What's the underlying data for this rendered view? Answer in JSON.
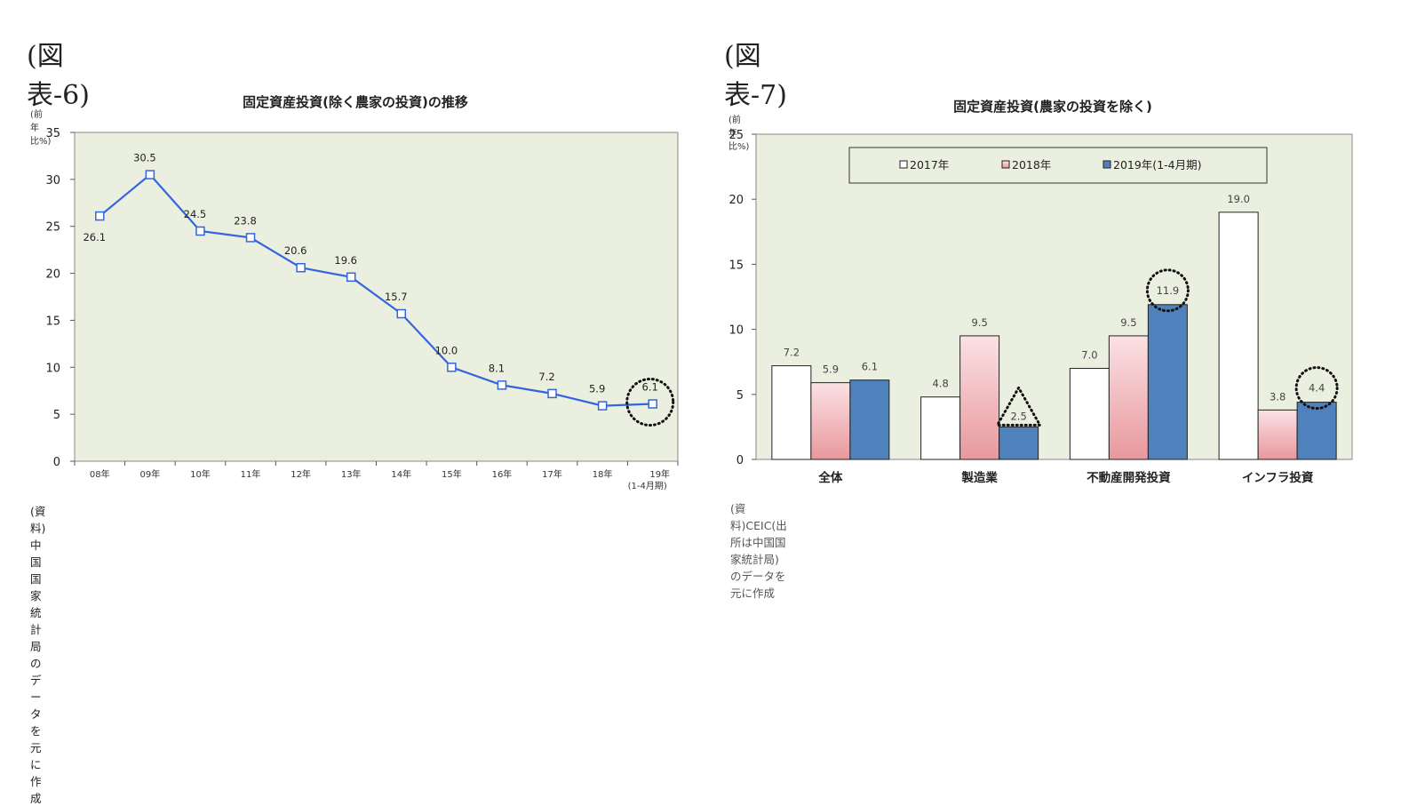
{
  "left_panel": {
    "figure_label": "(図表-6)",
    "title": "固定資産投資(除く農家の投資)の推移",
    "unit": "(前年比%)",
    "source": "(資料)中国国家統計局のデータを元に作成"
  },
  "right_panel": {
    "figure_label": "(図表-7)",
    "title": "固定資産投資(農家の投資を除く)",
    "unit": "(前年比%)",
    "source": "(資料)CEIC(出所は中国国家統計局)のデータを元に作成"
  },
  "colors": {
    "plot_bg": "#ebefe0",
    "line": "#3366dd",
    "bar_2017": "#ffffff",
    "bar_2018_top": "#fbe1e4",
    "bar_2018_bottom": "#e8989e",
    "bar_2019": "#4f81bd"
  },
  "chart_data": [
    {
      "type": "line",
      "title": "固定資産投資(除く農家の投資)の推移",
      "ylabel": "(前年比%)",
      "categories": [
        "08年",
        "09年",
        "10年",
        "11年",
        "12年",
        "13年",
        "14年",
        "15年",
        "16年",
        "17年",
        "18年",
        "19年\n(1-4月期)"
      ],
      "category_lines": [
        [
          "08年"
        ],
        [
          "09年"
        ],
        [
          "10年"
        ],
        [
          "11年"
        ],
        [
          "12年"
        ],
        [
          "13年"
        ],
        [
          "14年"
        ],
        [
          "15年"
        ],
        [
          "16年"
        ],
        [
          "17年"
        ],
        [
          "18年"
        ],
        [
          "19年",
          "(1-4月期)"
        ]
      ],
      "values": [
        26.1,
        30.5,
        24.5,
        23.8,
        20.6,
        19.6,
        15.7,
        10.0,
        8.1,
        7.2,
        5.9,
        6.1
      ],
      "data_labels": [
        "26.1",
        "30.5",
        "24.5",
        "23.8",
        "20.6",
        "19.6",
        "15.7",
        "10.0",
        "8.1",
        "7.2",
        "5.9",
        "6.1"
      ],
      "ylim": [
        0,
        35
      ],
      "yticks": [
        0,
        5,
        10,
        15,
        20,
        25,
        30,
        35
      ],
      "highlight": "19年(1-4月期) circled",
      "grid": false
    },
    {
      "type": "bar",
      "title": "固定資産投資(農家の投資を除く)",
      "ylabel": "(前年比%)",
      "categories": [
        "全体",
        "製造業",
        "不動産開発投資",
        "インフラ投資"
      ],
      "series": [
        {
          "name": "2017年",
          "values": [
            7.2,
            4.8,
            7.0,
            19.0
          ],
          "labels": [
            "7.2",
            "4.8",
            "7.0",
            "19.0"
          ]
        },
        {
          "name": "2018年",
          "values": [
            5.9,
            9.5,
            9.5,
            3.8
          ],
          "labels": [
            "5.9",
            "9.5",
            "9.5",
            "3.8"
          ]
        },
        {
          "name": "2019年(1-4月期)",
          "values": [
            6.1,
            2.5,
            11.9,
            4.4
          ],
          "labels": [
            "6.1",
            "2.5",
            "11.9",
            "4.4"
          ]
        }
      ],
      "ylim": [
        0,
        25
      ],
      "yticks": [
        0,
        5,
        10,
        15,
        20,
        25
      ],
      "legend": "top",
      "highlights": [
        "製造業 2019 triangle",
        "不動産開発投資 2019 circled",
        "インフラ投資 2019 circled"
      ],
      "grid": false
    }
  ]
}
